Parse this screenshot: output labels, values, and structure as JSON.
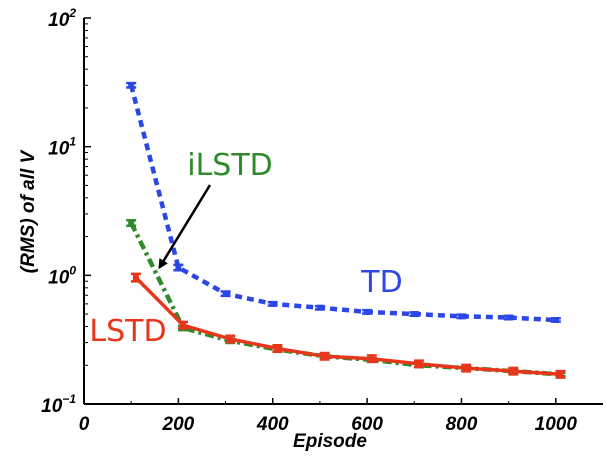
{
  "chart_data": {
    "type": "line",
    "title": "",
    "xlabel": "Episode",
    "ylabel": "(RMS) of all V",
    "xlim": [
      0,
      1100
    ],
    "ylim": [
      0.1,
      100
    ],
    "y_scale": "log",
    "grid": false,
    "x_ticks": [
      "0",
      "200",
      "400",
      "600",
      "800",
      "1000"
    ],
    "y_ticks": [
      {
        "base": "10",
        "exp": "2"
      },
      {
        "base": "10",
        "exp": "1"
      },
      {
        "base": "10",
        "exp": "0"
      },
      {
        "base": "10",
        "exp": "−1"
      }
    ],
    "series": [
      {
        "name": "TD",
        "color": "#2b47e6",
        "line_style": "dotted",
        "x": [
          100,
          200,
          300,
          400,
          500,
          600,
          700,
          800,
          900,
          1000
        ],
        "values": [
          30,
          1.15,
          0.72,
          0.6,
          0.56,
          0.52,
          0.5,
          0.48,
          0.47,
          0.45
        ],
        "errors": [
          0.04,
          0.05,
          0.04,
          0.03,
          0.03,
          0.03,
          0.03,
          0.03,
          0.03,
          0.03
        ]
      },
      {
        "name": "iLSTD",
        "color": "#2f8a2a",
        "line_style": "dash-dot",
        "x": [
          100,
          210,
          310,
          410,
          510,
          610,
          710,
          810,
          910,
          1010
        ],
        "values": [
          2.55,
          0.39,
          0.31,
          0.265,
          0.235,
          0.22,
          0.2,
          0.19,
          0.18,
          0.17
        ],
        "errors": [
          0.05,
          0.04,
          0.04,
          0.035,
          0.03,
          0.03,
          0.03,
          0.03,
          0.03,
          0.03
        ]
      },
      {
        "name": "LSTD",
        "color": "#e8361c",
        "line_style": "solid",
        "x": [
          110,
          210,
          310,
          410,
          510,
          610,
          710,
          810,
          910,
          1010
        ],
        "values": [
          0.96,
          0.41,
          0.32,
          0.27,
          0.235,
          0.225,
          0.205,
          0.19,
          0.18,
          0.17
        ],
        "errors": [
          0.07,
          0.06,
          0.06,
          0.06,
          0.06,
          0.06,
          0.06,
          0.06,
          0.06,
          0.06
        ]
      }
    ],
    "annotations": [
      {
        "text": "iLSTD",
        "color": "#2f8a2a",
        "arrow_to": {
          "x": 160,
          "y": 1.15
        }
      }
    ]
  }
}
